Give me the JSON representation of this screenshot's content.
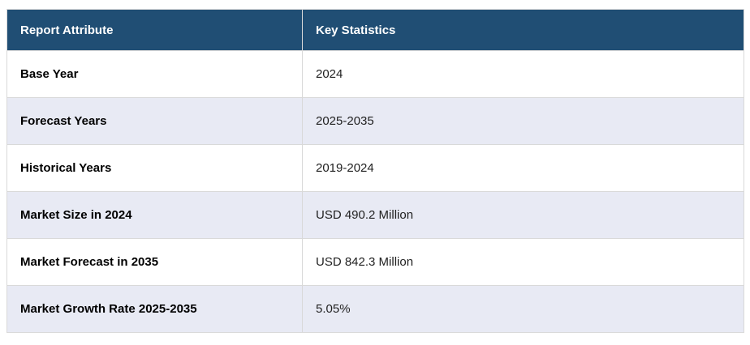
{
  "colors": {
    "header_bg": "#204E74",
    "header_text": "#FFFFFF",
    "stripe_bg": "#E8EAF4",
    "row_bg": "#FFFFFF",
    "border": "#D9D9D9",
    "label_text": "#000000",
    "value_text": "#1F1F1F"
  },
  "table": {
    "columns": [
      {
        "label": "Report Attribute"
      },
      {
        "label": "Key Statistics"
      }
    ],
    "rows": [
      {
        "attribute": "Base Year",
        "value": "2024"
      },
      {
        "attribute": "Forecast Years",
        "value": "2025-2035"
      },
      {
        "attribute": "Historical Years",
        "value": "2019-2024"
      },
      {
        "attribute": "Market Size in 2024",
        "value": "USD 490.2 Million"
      },
      {
        "attribute": "Market Forecast in 2035",
        "value": "USD 842.3 Million"
      },
      {
        "attribute": "Market Growth Rate 2025-2035",
        "value": "5.05%"
      }
    ]
  },
  "chart_data": {
    "type": "table",
    "title": "",
    "columns": [
      "Report Attribute",
      "Key Statistics"
    ],
    "rows": [
      [
        "Base Year",
        "2024"
      ],
      [
        "Forecast Years",
        "2025-2035"
      ],
      [
        "Historical Years",
        "2019-2024"
      ],
      [
        "Market Size in 2024",
        "USD 490.2 Million"
      ],
      [
        "Market Forecast in 2035",
        "USD 842.3 Million"
      ],
      [
        "Market Growth Rate 2025-2035",
        "5.05%"
      ]
    ],
    "values": {
      "base_year": 2024,
      "forecast_years": "2025-2035",
      "historical_years": "2019-2024",
      "market_size_2024_usd_million": 490.2,
      "market_forecast_2035_usd_million": 842.3,
      "market_growth_rate_2025_2035_percent": 5.05
    }
  }
}
